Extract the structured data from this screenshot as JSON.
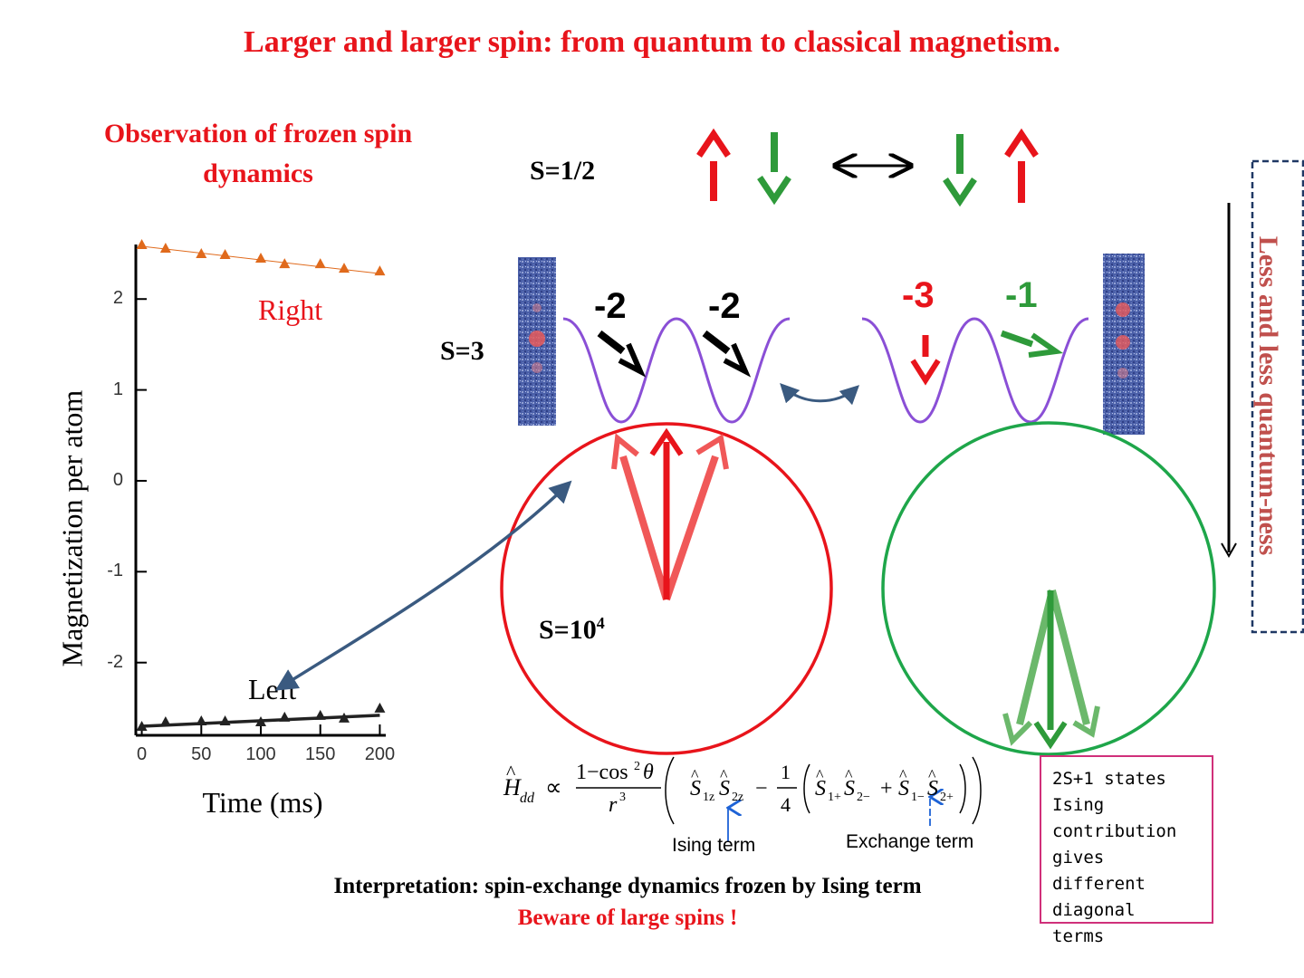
{
  "slide": {
    "title": "Larger and larger spin: from quantum to classical magnetism.",
    "subtitle_line1": "Observation of frozen spin",
    "subtitle_line2": "dynamics",
    "spin_half_label": "S=1/2",
    "spin_three_label": "S=3",
    "spin_large_label": "S=10",
    "spin_large_exp": "4",
    "left_well_numbers": [
      "-2",
      "-2"
    ],
    "right_well_numbers": [
      "-3",
      "-1"
    ],
    "quantumness_label": "Less and less quantum-ness",
    "note_lines": [
      "2S+1 states",
      "Ising",
      "contribution",
      "gives different",
      "diagonal",
      "terms"
    ],
    "ising_term": "Ising term",
    "exchange_term": "Exchange term",
    "interpretation": "Interpretation: spin-exchange dynamics frozen by Ising term",
    "beware": "Beware  of large spins !",
    "colors": {
      "red": "#e8141b",
      "green": "#2e9a3a",
      "purple": "#8a4fd6",
      "navy": "#3a5a80"
    }
  },
  "chart_data": {
    "type": "scatter",
    "xlabel": "Time (ms)",
    "ylabel": "Magnetization per atom",
    "xlim": [
      -5,
      205
    ],
    "ylim": [
      -2.8,
      2.6
    ],
    "xticks": [
      0,
      50,
      100,
      150,
      200
    ],
    "yticks": [
      2,
      1,
      0,
      -1,
      -2
    ],
    "series": [
      {
        "name": "Right",
        "color": "#e06a1c",
        "x": [
          0,
          20,
          50,
          70,
          100,
          120,
          150,
          170,
          200
        ],
        "y": [
          2.6,
          2.56,
          2.5,
          2.49,
          2.45,
          2.39,
          2.39,
          2.34,
          2.31
        ],
        "fit": [
          [
            0,
            2.58
          ],
          [
            200,
            2.28
          ]
        ]
      },
      {
        "name": "Left",
        "color": "#222222",
        "x": [
          0,
          20,
          50,
          70,
          100,
          120,
          150,
          170,
          200
        ],
        "y": [
          -2.7,
          -2.65,
          -2.64,
          -2.64,
          -2.65,
          -2.6,
          -2.58,
          -2.61,
          -2.5
        ],
        "fit": [
          [
            0,
            -2.7
          ],
          [
            200,
            -2.58
          ]
        ]
      }
    ]
  }
}
